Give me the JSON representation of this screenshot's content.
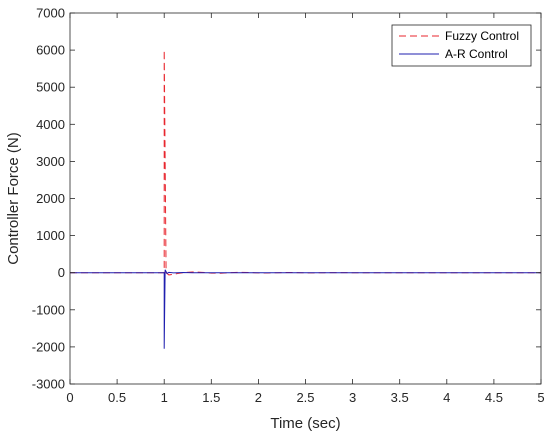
{
  "chart_data": {
    "type": "line",
    "title": "",
    "xlabel": "Time (sec)",
    "ylabel": "Controller Force (N)",
    "xlim": [
      0,
      5
    ],
    "ylim": [
      -3000,
      7000
    ],
    "xticks": [
      0,
      0.5,
      1,
      1.5,
      2,
      2.5,
      3,
      3.5,
      4,
      4.5,
      5
    ],
    "xtick_labels": [
      "0",
      "0.5",
      "1",
      "1.5",
      "2",
      "2.5",
      "3",
      "3.5",
      "4",
      "4.5",
      "5"
    ],
    "yticks": [
      -3000,
      -2000,
      -1000,
      0,
      1000,
      2000,
      3000,
      4000,
      5000,
      6000,
      7000
    ],
    "ytick_labels": [
      "-3000",
      "-2000",
      "-1000",
      "0",
      "1000",
      "2000",
      "3000",
      "4000",
      "5000",
      "6000",
      "7000"
    ],
    "grid": false,
    "legend_position": "top-right",
    "series": [
      {
        "name": "Fuzzy Control",
        "color": "#e8262e",
        "style": "dashed",
        "x": [
          0,
          0.999,
          1.0,
          1.0,
          1.02,
          1.05,
          1.1,
          1.15,
          1.2,
          1.3,
          1.4,
          1.5,
          1.6,
          1.7,
          1.8,
          1.9,
          2.0,
          2.1,
          2.2,
          2.3,
          2.4,
          2.5,
          2.6,
          2.7,
          2.8,
          2.9,
          3.0,
          3.5,
          4.0,
          4.5,
          5.0
        ],
        "y": [
          0,
          0,
          0,
          6000,
          0,
          -60,
          -40,
          -20,
          0,
          20,
          10,
          -10,
          -15,
          0,
          10,
          5,
          -5,
          -8,
          0,
          6,
          3,
          -3,
          -4,
          0,
          3,
          1,
          0,
          0,
          0,
          0,
          0
        ]
      },
      {
        "name": "A-R Control",
        "color": "#1f1faf",
        "style": "solid",
        "x": [
          0,
          0.999,
          1.0,
          1.0,
          1.01,
          1.03,
          1.05,
          1.1,
          1.2,
          1.3,
          1.5,
          2.0,
          3.0,
          4.0,
          5.0
        ],
        "y": [
          0,
          0,
          0,
          -2050,
          80,
          -20,
          10,
          -5,
          5,
          0,
          0,
          0,
          0,
          0,
          0
        ]
      }
    ]
  }
}
